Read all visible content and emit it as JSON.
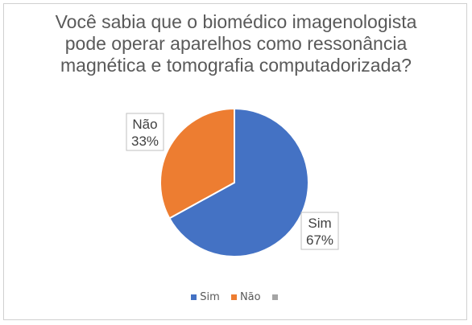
{
  "chart_data": {
    "type": "pie",
    "title_lines": [
      "Você sabia que o biomédico imagenologista",
      "pode operar aparelhos como ressonância",
      "magnética e tomografia computadorizada?"
    ],
    "slices": [
      {
        "label": "Sim",
        "value": 67,
        "percent_label": "67%",
        "color": "#4472C4"
      },
      {
        "label": "Não",
        "value": 33,
        "percent_label": "33%",
        "color": "#ED7D31"
      }
    ],
    "legend": {
      "placement": "bottom",
      "entries": [
        {
          "label": "Sim",
          "color": "#4472C4"
        },
        {
          "label": "Não",
          "color": "#ED7D31"
        },
        {
          "label": "",
          "color": "#A5A5A5"
        }
      ]
    }
  }
}
